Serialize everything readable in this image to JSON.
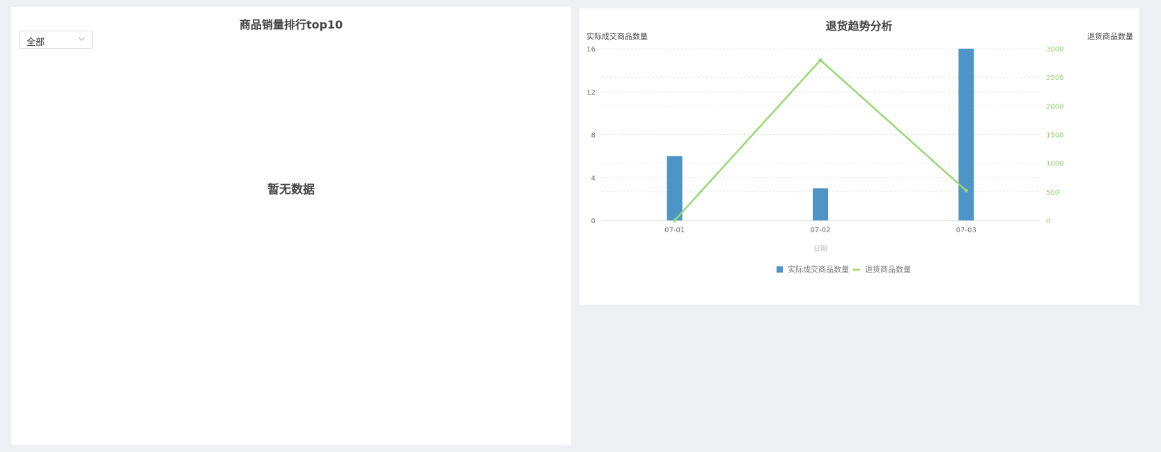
{
  "left_panel": {
    "title": "商品销量排行top10",
    "filter": {
      "selected": "全部"
    },
    "empty_text": "暂无数据"
  },
  "right_panel": {
    "title": "退货趋势分析"
  },
  "chart_data": {
    "type": "bar+line",
    "title": "退货趋势分析",
    "xlabel": "日期",
    "categories": [
      "07-01",
      "07-02",
      "07-03"
    ],
    "series": [
      {
        "name": "实际成交商品数量",
        "type": "bar",
        "axis": "left",
        "values": [
          6,
          3,
          16
        ],
        "color": "#4d94c7"
      },
      {
        "name": "退货商品数量",
        "type": "line",
        "axis": "right",
        "values": [
          0,
          2800,
          520
        ],
        "color": "#97d873"
      }
    ],
    "y_left": {
      "label": "实际成交商品数量",
      "ylim": [
        0,
        16
      ],
      "ticks": [
        0,
        4,
        8,
        12,
        16
      ]
    },
    "y_right": {
      "label": "退货商品数量",
      "ylim": [
        0,
        3000
      ],
      "ticks": [
        0,
        500,
        1000,
        1500,
        2000,
        2500,
        3000
      ]
    },
    "legend_placement": "bottom-center",
    "grid": true
  }
}
